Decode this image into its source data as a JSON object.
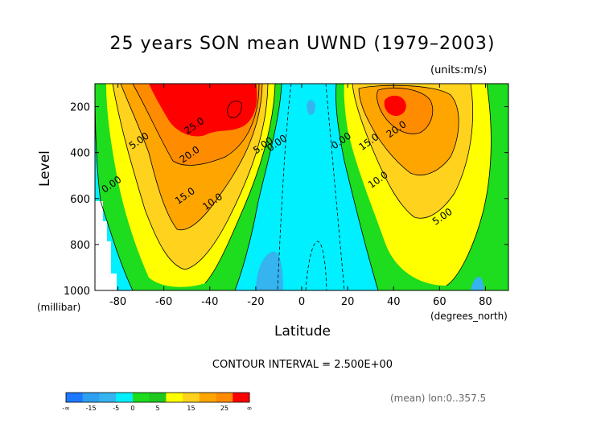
{
  "chart_data": {
    "type": "contour",
    "title": "25 years SON mean UWND (1979–2003)",
    "units_label": "(units:m/s)",
    "xlabel": "Latitude",
    "xlabel_unit": "(degrees_north)",
    "ylabel": "Level",
    "ylabel_unit": "(millibar)",
    "xlim": [
      -90,
      90
    ],
    "ylim": [
      1000,
      100
    ],
    "x_ticks": [
      -80,
      -60,
      -40,
      -20,
      0,
      20,
      40,
      60,
      80
    ],
    "y_ticks": [
      200,
      400,
      600,
      800,
      1000
    ],
    "contour_interval_text": "CONTOUR INTERVAL = 2.500E+00",
    "averaging_note": "(mean) lon:0..357.5",
    "contour_labels": [
      {
        "text": "25.0",
        "lat": -46,
        "lev": 295
      },
      {
        "text": "20.0",
        "lat": -48,
        "lev": 420
      },
      {
        "text": "15.0",
        "lat": -50,
        "lev": 600
      },
      {
        "text": "10.0",
        "lat": -38,
        "lev": 625
      },
      {
        "text": "5.00",
        "lat": -70,
        "lev": 360
      },
      {
        "text": "5.00",
        "lat": -16,
        "lev": 380
      },
      {
        "text": "0.00",
        "lat": -82,
        "lev": 550
      },
      {
        "text": "0.00",
        "lat": -10,
        "lev": 370
      },
      {
        "text": "0.00",
        "lat": 18,
        "lev": 360
      },
      {
        "text": "20.0",
        "lat": 42,
        "lev": 310
      },
      {
        "text": "15.0",
        "lat": 30,
        "lev": 365
      },
      {
        "text": "10.0",
        "lat": 34,
        "lev": 530
      },
      {
        "text": "5.00",
        "lat": 62,
        "lev": 690
      }
    ],
    "colorbar": {
      "ticks": [
        "-∞",
        "-15",
        "-5",
        "0",
        "5",
        "15",
        "25",
        "∞"
      ],
      "colors": [
        "#1e78ff",
        "#2ea0f0",
        "#35b4f0",
        "#00f0ff",
        "#1edc1e",
        "#1ec81e",
        "#ffff00",
        "#ffd21e",
        "#ffa500",
        "#ff8c00",
        "#ff0000"
      ]
    }
  }
}
